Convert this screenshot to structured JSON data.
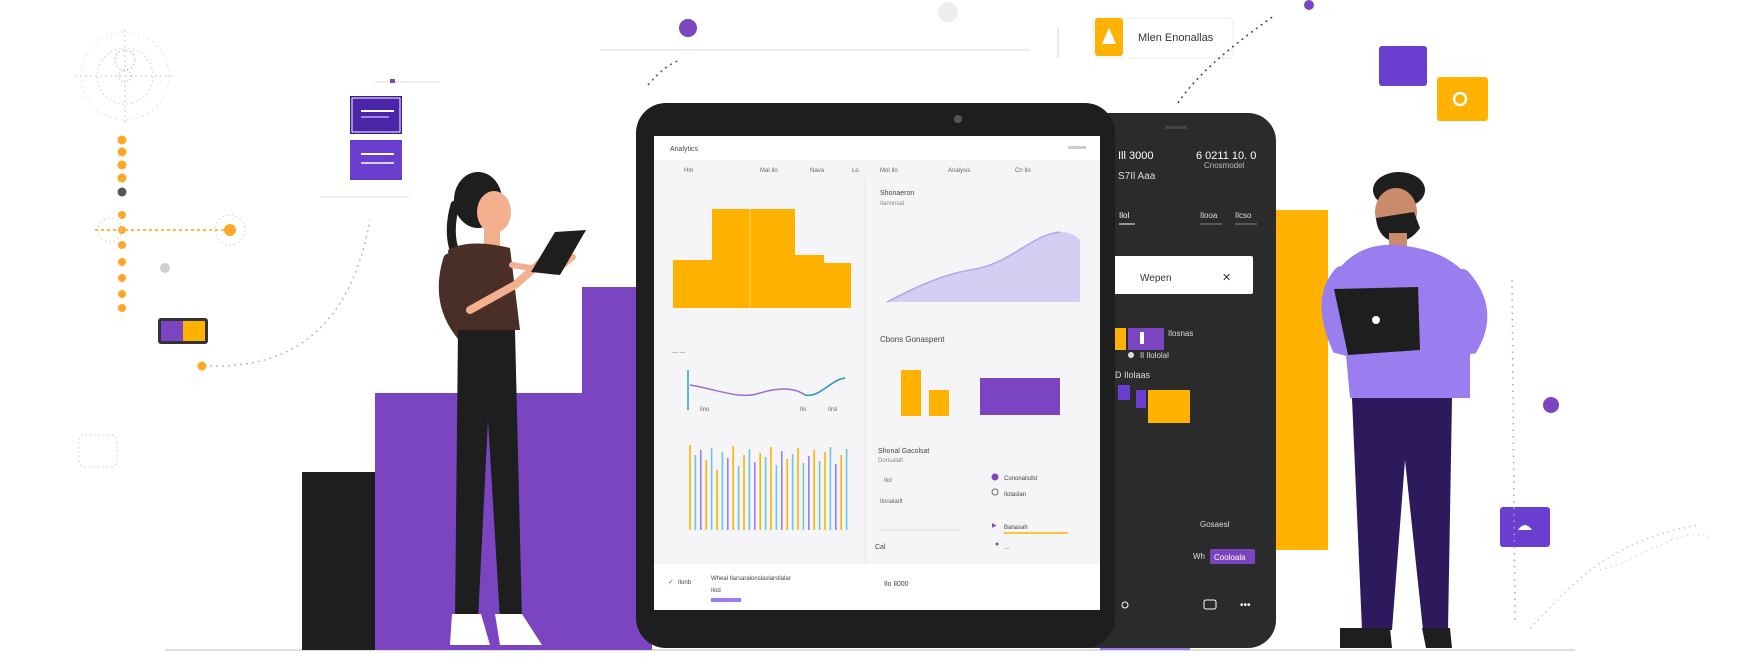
{
  "palette": {
    "purple": "#7b45c2",
    "purple_dark": "#5e35b1",
    "purple_light": "#9a7ef0",
    "orange": "#ffb300",
    "dark": "#1e1e1e",
    "screen_bg": "#f5f5f7"
  },
  "top_badge": {
    "label": "Mlen Enonallas"
  },
  "tablet": {
    "header_brand": "Analytics",
    "nav_items": [
      "Hm",
      "Mal Ilo",
      "Nava",
      "Lo",
      "Mol Ilo",
      "Analysis",
      "Cn Ilo"
    ],
    "panel_top_right": {
      "title": "Shonaeron",
      "subtitle": "Ilanonsal"
    },
    "panel_mid_right": {
      "title": "Cbons Gonaspent"
    },
    "line_chart_labels": [
      "lino",
      "Ilo",
      "Ilrsl"
    ],
    "section_list": {
      "title": "Shonal Gacolsat",
      "subtitle": "Dorisalalt"
    },
    "legend_items": [
      "Cunonalsdsl",
      "Ilolaslan",
      "Banasah",
      "Cal"
    ],
    "sub_text": "Ilonalarlt",
    "footer_text": "Wheal Ilarsaralonslaslarsllalar",
    "footer_text_b": "Ilod",
    "footer_right": "Ilo Il000",
    "footer_left_label": "Ilonb",
    "readout": "Ilol"
  },
  "phone": {
    "top_left_value": "Ill 3000",
    "top_left_sub": "S7Il Aaa",
    "top_right_value": "6 0211 10. 0",
    "top_right_sub": "Cnosmodel",
    "tabs": [
      "Ilol",
      "Ilooa",
      "Ilcso"
    ],
    "search_text": "Wepen",
    "list_row_1": "Ilosnas",
    "list_row_2": "Il Ilololal",
    "list_row_3": "D Ilolaas",
    "bottom_left_1": "Gosaesl",
    "bottom_left_2": "Wh",
    "bottom_badge": "Cooloala"
  }
}
